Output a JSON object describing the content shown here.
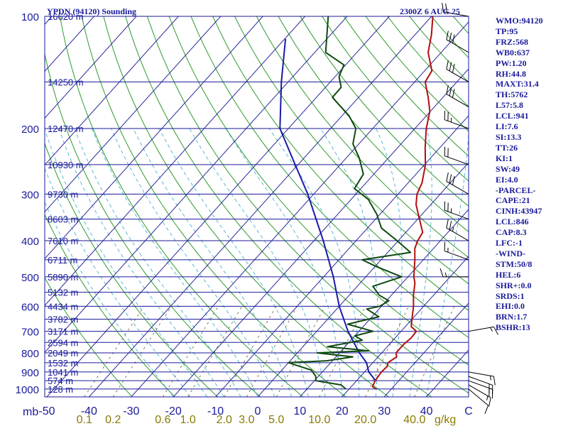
{
  "header": {
    "station": "YPDN (94120) Sounding",
    "time": "2300Z  6 AUG 25"
  },
  "chart_data": {
    "type": "line",
    "title": "YPDN (94120) Sounding",
    "xlabel": "C",
    "ylabel": "mb",
    "mixing_ratio_unit": "g/kg",
    "xlim": [
      -50,
      50
    ],
    "ylim": [
      1000,
      100
    ],
    "pressure_ticks": [
      100,
      200,
      300,
      400,
      500,
      600,
      700,
      800,
      900,
      1000
    ],
    "temperature_ticks": [
      "-50",
      "-40",
      "-30",
      "-20",
      "-10",
      "0",
      "10",
      "20",
      "30",
      "40",
      "C"
    ],
    "mixing_ratio_ticks": [
      "0.1",
      "0.2",
      "0.6",
      "1.0",
      "2.0",
      "3.0",
      "5.0",
      "10.0",
      "20.0",
      "40.0"
    ],
    "height_labels": [
      {
        "p": 100,
        "text": "16620 m"
      },
      {
        "p": 150,
        "text": "14250 m"
      },
      {
        "p": 200,
        "text": "12470 m"
      },
      {
        "p": 250,
        "text": "10930 m"
      },
      {
        "p": 300,
        "text": "9730 m"
      },
      {
        "p": 350,
        "text": "8603 m"
      },
      {
        "p": 400,
        "text": "7610 m"
      },
      {
        "p": 450,
        "text": "6711 m"
      },
      {
        "p": 500,
        "text": "5890 m"
      },
      {
        "p": 550,
        "text": "5132 m"
      },
      {
        "p": 600,
        "text": "4434 m"
      },
      {
        "p": 650,
        "text": "3782 m"
      },
      {
        "p": 700,
        "text": "3171 m"
      },
      {
        "p": 750,
        "text": "2594 m"
      },
      {
        "p": 800,
        "text": "2049 m"
      },
      {
        "p": 850,
        "text": "1532 m"
      },
      {
        "p": 900,
        "text": "1041 m"
      },
      {
        "p": 950,
        "text": "574 m"
      },
      {
        "p": 1000,
        "text": "128 m"
      }
    ],
    "temperature": [
      {
        "p": 1000,
        "t": 26.4
      },
      {
        "p": 985,
        "t": 25.0
      },
      {
        "p": 950,
        "t": 24.4
      },
      {
        "p": 925,
        "t": 24.2
      },
      {
        "p": 900,
        "t": 24.0
      },
      {
        "p": 870,
        "t": 24.2
      },
      {
        "p": 850,
        "t": 23.6
      },
      {
        "p": 820,
        "t": 24.4
      },
      {
        "p": 800,
        "t": 23.4
      },
      {
        "p": 760,
        "t": 23.4
      },
      {
        "p": 730,
        "t": 23.8
      },
      {
        "p": 700,
        "t": 23.6
      },
      {
        "p": 680,
        "t": 21.4
      },
      {
        "p": 650,
        "t": 20.0
      },
      {
        "p": 600,
        "t": 17.6
      },
      {
        "p": 560,
        "t": 15.2
      },
      {
        "p": 520,
        "t": 13.0
      },
      {
        "p": 500,
        "t": 11.4
      },
      {
        "p": 470,
        "t": 9.4
      },
      {
        "p": 450,
        "t": 8.0
      },
      {
        "p": 420,
        "t": 5.6
      },
      {
        "p": 400,
        "t": 4.6
      },
      {
        "p": 380,
        "t": 4.0
      },
      {
        "p": 350,
        "t": 0.4
      },
      {
        "p": 320,
        "t": -3.5
      },
      {
        "p": 300,
        "t": -5.5
      },
      {
        "p": 280,
        "t": -6.7
      },
      {
        "p": 250,
        "t": -9.8
      },
      {
        "p": 225,
        "t": -13.5
      },
      {
        "p": 200,
        "t": -17.3
      },
      {
        "p": 180,
        "t": -20.1
      },
      {
        "p": 165,
        "t": -23.5
      },
      {
        "p": 150,
        "t": -27.5
      },
      {
        "p": 140,
        "t": -28.3
      },
      {
        "p": 125,
        "t": -33.1
      },
      {
        "p": 112,
        "t": -36.1
      },
      {
        "p": 100,
        "t": -39.7
      }
    ],
    "dewpoint": [
      {
        "p": 1000,
        "t": 19.2
      },
      {
        "p": 975,
        "t": 17.2
      },
      {
        "p": 950,
        "t": 10.3
      },
      {
        "p": 925,
        "t": 9.4
      },
      {
        "p": 890,
        "t": 7.0
      },
      {
        "p": 850,
        "t": 0.0
      },
      {
        "p": 840,
        "t": 8.7
      },
      {
        "p": 820,
        "t": 14.0
      },
      {
        "p": 800,
        "t": 4.7
      },
      {
        "p": 790,
        "t": 16.5
      },
      {
        "p": 770,
        "t": 5.8
      },
      {
        "p": 740,
        "t": 12.7
      },
      {
        "p": 720,
        "t": 10.0
      },
      {
        "p": 700,
        "t": 13.3
      },
      {
        "p": 670,
        "t": 5.8
      },
      {
        "p": 640,
        "t": 11.6
      },
      {
        "p": 610,
        "t": 7.1
      },
      {
        "p": 600,
        "t": 9.6
      },
      {
        "p": 580,
        "t": 10.6
      },
      {
        "p": 560,
        "t": 7.1
      },
      {
        "p": 530,
        "t": 3.7
      },
      {
        "p": 500,
        "t": 8.5
      },
      {
        "p": 470,
        "t": 0.5
      },
      {
        "p": 450,
        "t": -4.5
      },
      {
        "p": 430,
        "t": 5.4
      },
      {
        "p": 400,
        "t": -0.3
      },
      {
        "p": 370,
        "t": -6.7
      },
      {
        "p": 340,
        "t": -10.7
      },
      {
        "p": 310,
        "t": -15.9
      },
      {
        "p": 290,
        "t": -21.5
      },
      {
        "p": 265,
        "t": -22.5
      },
      {
        "p": 240,
        "t": -26.9
      },
      {
        "p": 220,
        "t": -31.4
      },
      {
        "p": 200,
        "t": -34.0
      },
      {
        "p": 185,
        "t": -38.3
      },
      {
        "p": 165,
        "t": -46.2
      },
      {
        "p": 155,
        "t": -46.3
      },
      {
        "p": 145,
        "t": -49.1
      },
      {
        "p": 135,
        "t": -50.4
      },
      {
        "p": 125,
        "t": -57.4
      },
      {
        "p": 100,
        "t": -64.5
      }
    ],
    "parcel": [
      {
        "p": 950,
        "t": 24.5
      },
      {
        "p": 900,
        "t": 21.0
      },
      {
        "p": 850,
        "t": 18.5
      },
      {
        "p": 800,
        "t": 14.7
      },
      {
        "p": 700,
        "t": 7.4
      },
      {
        "p": 600,
        "t": 0.0
      },
      {
        "p": 500,
        "t": -7.7
      },
      {
        "p": 400,
        "t": -17.8
      },
      {
        "p": 300,
        "t": -31.4
      },
      {
        "p": 250,
        "t": -40.7
      },
      {
        "p": 200,
        "t": -52.0
      },
      {
        "p": 150,
        "t": -61.6
      },
      {
        "p": 115,
        "t": -69.8
      }
    ],
    "wind_barbs": [
      {
        "p": 1000,
        "dir": 130,
        "spd": 10
      },
      {
        "p": 975,
        "dir": 120,
        "spd": 15
      },
      {
        "p": 950,
        "dir": 110,
        "spd": 20
      },
      {
        "p": 925,
        "dir": 110,
        "spd": 20
      },
      {
        "p": 900,
        "dir": 100,
        "spd": 15
      },
      {
        "p": 700,
        "dir": 80,
        "spd": 15
      },
      {
        "p": 500,
        "dir": 270,
        "spd": 15
      },
      {
        "p": 450,
        "dir": 290,
        "spd": 15
      },
      {
        "p": 400,
        "dir": 300,
        "spd": 25
      },
      {
        "p": 350,
        "dir": 290,
        "spd": 25
      },
      {
        "p": 300,
        "dir": 300,
        "spd": 30
      },
      {
        "p": 250,
        "dir": 290,
        "spd": 20
      },
      {
        "p": 200,
        "dir": 290,
        "spd": 25
      },
      {
        "p": 175,
        "dir": 300,
        "spd": 30
      },
      {
        "p": 150,
        "dir": 300,
        "spd": 30
      },
      {
        "p": 125,
        "dir": 300,
        "spd": 30
      },
      {
        "p": 100,
        "dir": 280,
        "spd": 20
      }
    ]
  },
  "indices": [
    "WMO:94120",
    "TP:95",
    "FRZ:568",
    "WB0:637",
    "PW:1.20",
    "RH:44.8",
    "MAXT:31.4",
    "TH:5762",
    "L57:5.8",
    "LCL:941",
    "LI:7.6",
    "SI:13.3",
    "TT:26",
    "KI:1",
    "SW:49",
    "EI:4.0",
    "-PARCEL-",
    "CAPE:21",
    "CINH:43947",
    "LCL:846",
    "CAP:8.3",
    "LFC:-1",
    "-WIND-",
    "STM:50/8",
    "HEL:6",
    "SHR+:0.0",
    "SRDS:1",
    "EHI:0.0",
    "BRN:1.7",
    "BSHR:13"
  ],
  "colors": {
    "background": "#ffffff",
    "isobar": "#1a1a9a",
    "isotherm": "#2a2a9a",
    "dry_adiabat": "#2e9a2e",
    "moist_adiabat": "#5ab8d6",
    "mixing_ratio": "#7a7a5a",
    "temperature": "#b01010",
    "dewpoint": "#104a10",
    "parcel": "#1a1aa8",
    "wind": "#000000",
    "text": "#1a1a9a",
    "mixing_label": "#8a7a00"
  }
}
